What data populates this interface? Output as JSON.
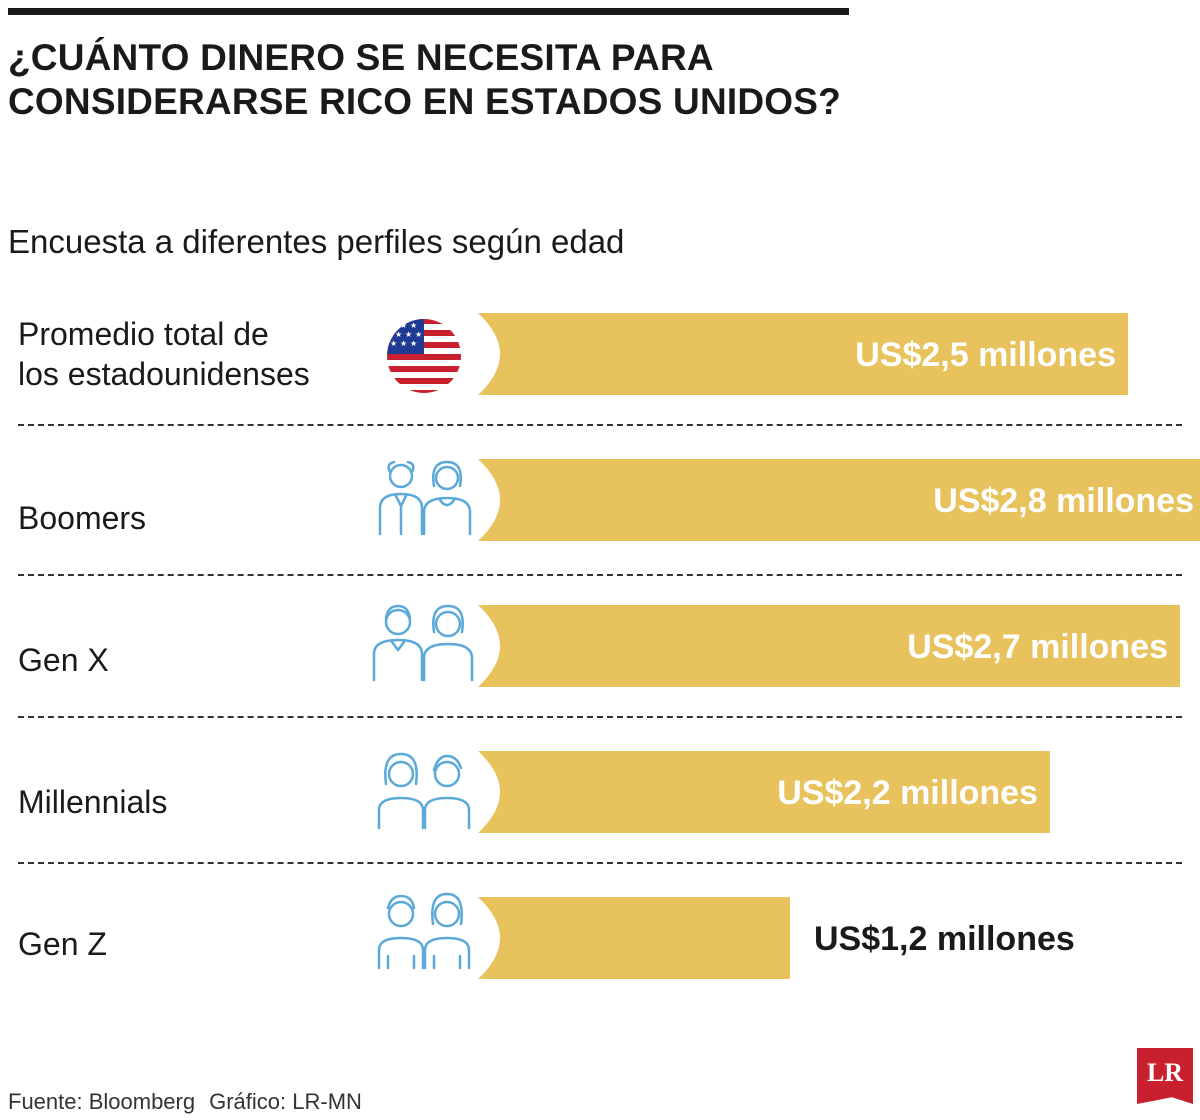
{
  "header": {
    "title_line1": "¿CUÁNTO DINERO SE NECESITA PARA",
    "title_line2": "CONSIDERARSE RICO EN ESTADOS UNIDOS?",
    "subtitle": "Encuesta a diferentes perfiles según edad"
  },
  "rows": [
    {
      "label_lines": [
        "Promedio total de",
        "los estadounidenses"
      ],
      "icon": "us-flag-icon"
    },
    {
      "label_lines": [
        "Boomers"
      ],
      "icon": "boomers-couple-icon"
    },
    {
      "label_lines": [
        "Gen X"
      ],
      "icon": "gen-x-couple-icon"
    },
    {
      "label_lines": [
        "Millennials"
      ],
      "icon": "millennials-couple-icon"
    },
    {
      "label_lines": [
        "Gen Z"
      ],
      "icon": "gen-z-couple-icon"
    }
  ],
  "chart_data": {
    "type": "bar",
    "title": "¿CUÁNTO DINERO SE NECESITA PARA CONSIDERARSE RICO EN ESTADOS UNIDOS?",
    "subtitle": "Encuesta a diferentes perfiles según edad",
    "categories": [
      "Promedio total de los estadounidenses",
      "Boomers",
      "Gen X",
      "Millennials",
      "Gen Z"
    ],
    "values": [
      2.5,
      2.8,
      2.7,
      2.2,
      1.2
    ],
    "units": "US$ millones",
    "value_labels": [
      "US$2,5 millones",
      "US$2,8 millones",
      "US$2,7 millones",
      "US$2,2 millones",
      "US$1,2 millones"
    ],
    "orientation": "horizontal",
    "xlabel": "",
    "ylabel": "",
    "grid": false
  },
  "colors": {
    "bar": "#e8c25c",
    "label_inside": "#ffffff",
    "label_outside": "#1a1a1a",
    "icon": "#5aa9d8",
    "flag_red": "#c8202f",
    "flag_blue": "#1f3a93",
    "logo": "#c8202f"
  },
  "footer": {
    "source": "Fuente: Bloomberg",
    "credit": "Gráfico: LR-MN"
  },
  "logo": {
    "text": "LR"
  }
}
